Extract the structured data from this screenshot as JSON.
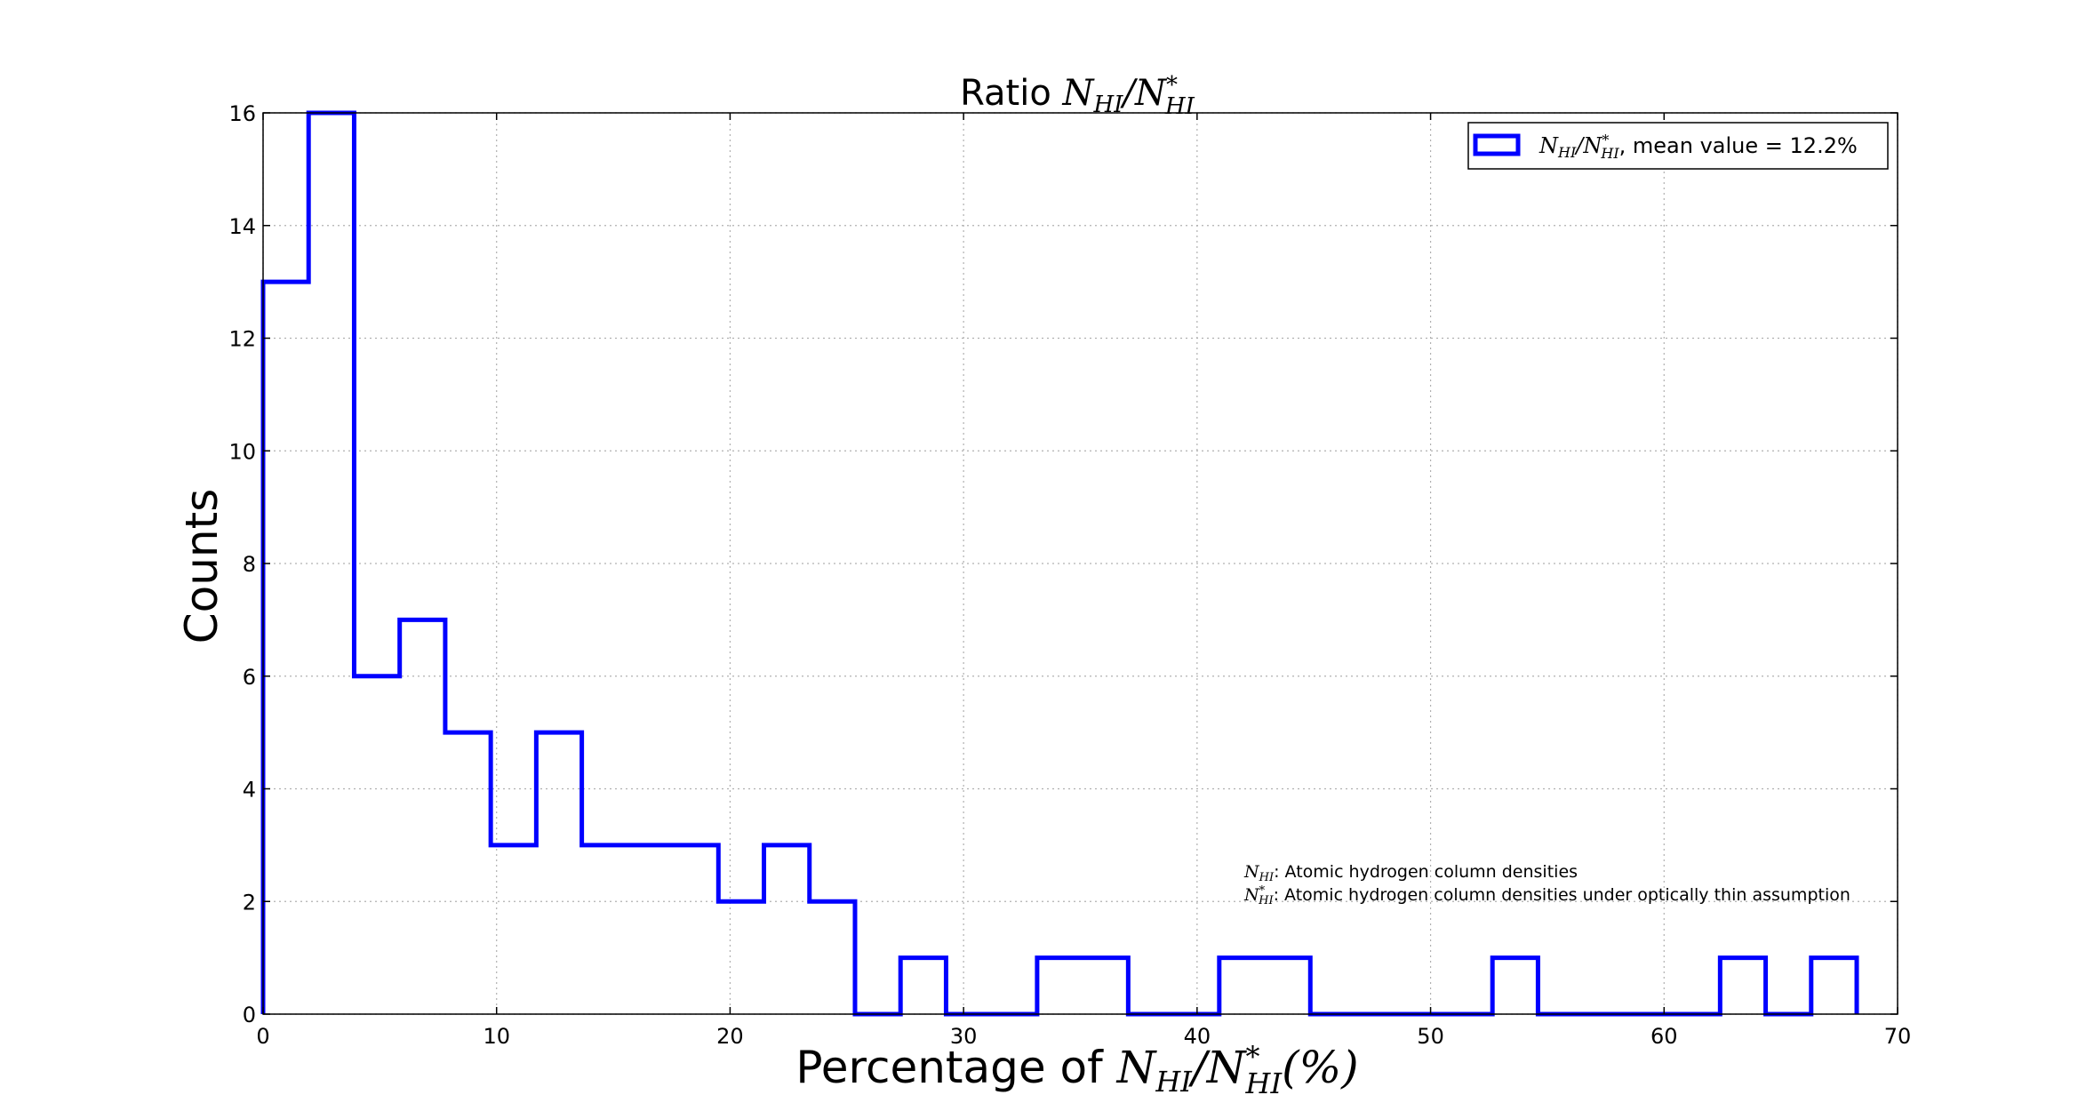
{
  "chart_data": {
    "type": "histogram",
    "title_prefix": "Ratio ",
    "xlabel_prefix": "Percentage of ",
    "ylabel": "Counts",
    "xlim": [
      0,
      70
    ],
    "ylim": [
      0,
      16
    ],
    "x_ticks": [
      0,
      10,
      20,
      30,
      40,
      50,
      60,
      70
    ],
    "y_ticks": [
      0,
      2,
      4,
      6,
      8,
      10,
      12,
      14,
      16
    ],
    "grid": true,
    "legend_placement": "top-right",
    "bin_edges": [
      0,
      1.95,
      3.9,
      5.85,
      7.8,
      9.75,
      11.7,
      13.65,
      15.6,
      17.55,
      19.5,
      21.45,
      23.4,
      25.35,
      27.3,
      29.25,
      31.2,
      33.15,
      35.1,
      37.05,
      39.0,
      40.95,
      42.9,
      44.85,
      46.8,
      48.75,
      50.7,
      52.65,
      54.6,
      56.55,
      58.5,
      60.45,
      62.4,
      64.35,
      66.3,
      68.25
    ],
    "counts": [
      13,
      16,
      6,
      7,
      5,
      3,
      5,
      3,
      3,
      3,
      2,
      3,
      2,
      0,
      1,
      0,
      0,
      1,
      1,
      0,
      0,
      1,
      1,
      0,
      0,
      0,
      0,
      1,
      0,
      0,
      0,
      0,
      1,
      0,
      1
    ],
    "series": [
      {
        "name_suffix": ", mean value = 12.2%",
        "color": "#0000ff"
      }
    ],
    "annotations": [
      {
        "suffix": ": Atomic hydrogen column densities"
      },
      {
        "suffix": ": Atomic hydrogen column densities under optically thin assumption"
      }
    ],
    "math": {
      "N": "N",
      "HI": "HI",
      "star": "*",
      "slash": "/",
      "percent": "(%)"
    }
  }
}
